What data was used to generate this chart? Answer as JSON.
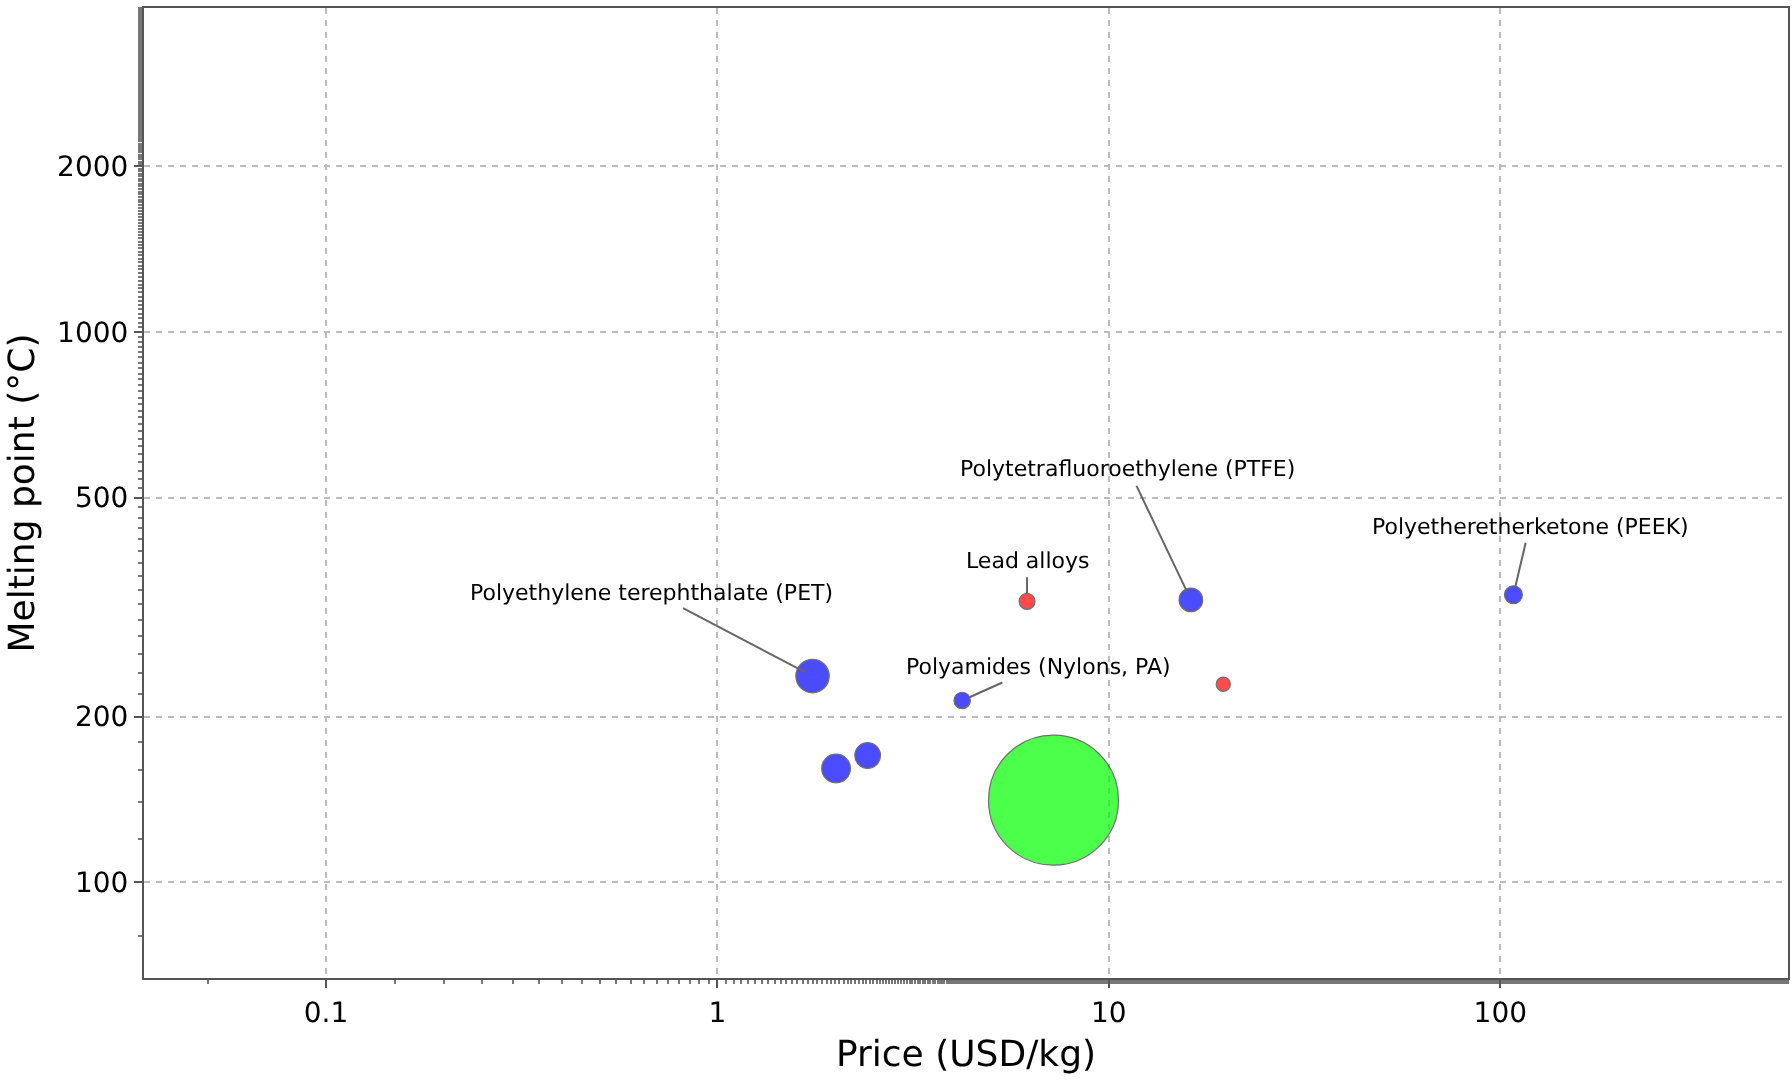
{
  "chart_data": {
    "type": "bubble",
    "xlabel": "Price (USD/kg)",
    "ylabel": "Melting point (°C)",
    "log": "xy",
    "grid": true,
    "xlim": [
      0.0343,
      543
    ],
    "xticks": [
      0.1,
      1,
      10,
      100
    ],
    "ylim": [
      67,
      3880
    ],
    "yticks": [
      100,
      200,
      500,
      1000,
      2000
    ],
    "x": [
      1.75,
      2.01,
      2.42,
      4.22,
      7.22,
      6.18,
      16.2,
      19.6,
      108
    ],
    "values": [
      237,
      161,
      170,
      214,
      141,
      324,
      326,
      229,
      333
    ],
    "sizes": [
      0.066,
      0.049,
      0.039,
      0.016,
      1,
      0.015,
      0.033,
      0.012,
      0.019
    ],
    "colors": [
      "#0000ff",
      "#0000ff",
      "#0000ff",
      "#0000ff",
      "#00ff00",
      "#ff0000",
      "#0000ff",
      "#ff0000",
      "#0000ff"
    ],
    "annotations": [
      {
        "text": "Polyethylene terephthalate (PET)",
        "x": 1.75,
        "y": 237
      },
      {
        "text": "Polyamides (Nylons, PA)",
        "x": 4.22,
        "y": 214
      },
      {
        "text": "Lead alloys",
        "x": 6.18,
        "y": 324
      },
      {
        "text": "Polytetrafluoroethylene (PTFE)",
        "x": 16.2,
        "y": 326
      },
      {
        "text": "Polyetheretherketone (PEEK)",
        "x": 108,
        "y": 333
      }
    ]
  }
}
